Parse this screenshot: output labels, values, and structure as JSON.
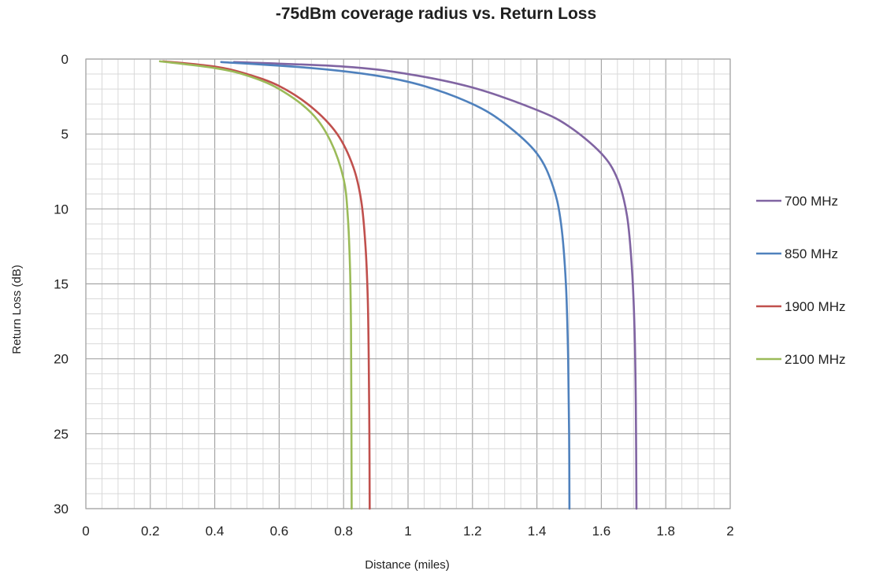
{
  "chart_data": {
    "type": "line",
    "title": "-75dBm coverage radius vs. Return Loss",
    "xlabel": "Distance (miles)",
    "ylabel": "Return Loss (dB)",
    "xlim": [
      0,
      2
    ],
    "ylim": [
      0,
      30
    ],
    "y_inverted": true,
    "x_ticks": [
      "0",
      "0.2",
      "0.4",
      "0.6",
      "0.8",
      "1",
      "1.2",
      "1.4",
      "1.6",
      "1.8",
      "2"
    ],
    "y_ticks": [
      "0",
      "5",
      "10",
      "15",
      "20",
      "25",
      "30"
    ],
    "grid": true,
    "legend_position": "right",
    "series": [
      {
        "name": "700 MHz",
        "color": "#8064A2",
        "points": [
          [
            0.46,
            0.2
          ],
          [
            0.8,
            0.5
          ],
          [
            1.0,
            1.0
          ],
          [
            1.2,
            1.9
          ],
          [
            1.4,
            3.4
          ],
          [
            1.5,
            4.5
          ],
          [
            1.6,
            6.3
          ],
          [
            1.65,
            8.0
          ],
          [
            1.68,
            10.5
          ],
          [
            1.695,
            14.0
          ],
          [
            1.703,
            18.0
          ],
          [
            1.707,
            23.0
          ],
          [
            1.709,
            30.0
          ]
        ]
      },
      {
        "name": "850 MHz",
        "color": "#4F81BD",
        "points": [
          [
            0.42,
            0.2
          ],
          [
            0.7,
            0.6
          ],
          [
            0.9,
            1.1
          ],
          [
            1.05,
            1.8
          ],
          [
            1.2,
            3.0
          ],
          [
            1.3,
            4.3
          ],
          [
            1.4,
            6.3
          ],
          [
            1.45,
            8.5
          ],
          [
            1.475,
            11.0
          ],
          [
            1.49,
            15.0
          ],
          [
            1.497,
            20.0
          ],
          [
            1.5,
            25.0
          ],
          [
            1.501,
            30.0
          ]
        ]
      },
      {
        "name": "1900 MHz",
        "color": "#C0504D",
        "points": [
          [
            0.24,
            0.15
          ],
          [
            0.4,
            0.5
          ],
          [
            0.5,
            1.0
          ],
          [
            0.6,
            1.8
          ],
          [
            0.7,
            3.2
          ],
          [
            0.78,
            5.0
          ],
          [
            0.83,
            7.2
          ],
          [
            0.855,
            9.5
          ],
          [
            0.868,
            12.5
          ],
          [
            0.875,
            16.0
          ],
          [
            0.878,
            20.0
          ],
          [
            0.88,
            25.0
          ],
          [
            0.881,
            30.0
          ]
        ]
      },
      {
        "name": "2100 MHz",
        "color": "#9BBB59",
        "points": [
          [
            0.23,
            0.15
          ],
          [
            0.4,
            0.6
          ],
          [
            0.5,
            1.1
          ],
          [
            0.6,
            2.0
          ],
          [
            0.7,
            3.6
          ],
          [
            0.76,
            5.5
          ],
          [
            0.8,
            8.0
          ],
          [
            0.813,
            10.5
          ],
          [
            0.82,
            14.0
          ],
          [
            0.823,
            18.0
          ],
          [
            0.824,
            23.0
          ],
          [
            0.825,
            30.0
          ]
        ]
      }
    ]
  }
}
